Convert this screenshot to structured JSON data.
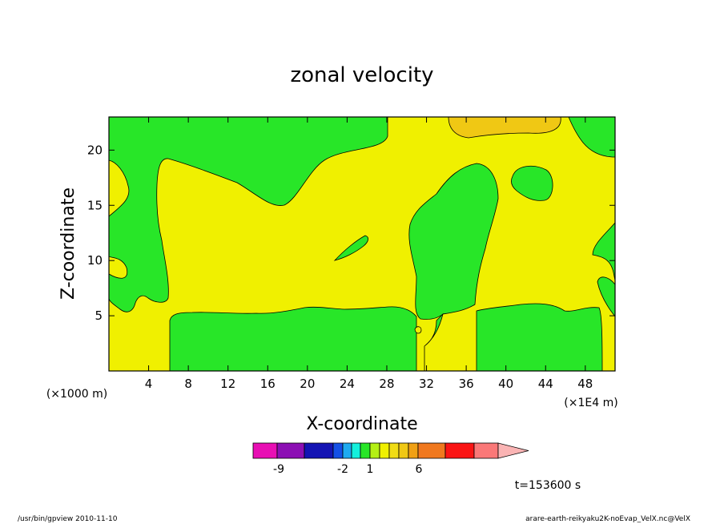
{
  "footer": {
    "left": "/usr/bin/gpview   2010-11-10",
    "right": "arare-earth-reikyaku2K-noEvap_VelX.nc@VelX"
  },
  "chart_data": {
    "type": "heatmap",
    "title": "zonal velocity",
    "xlabel": "X-coordinate",
    "ylabel": "Z-coordinate",
    "x_unit_left": "(×1000 m)",
    "x_unit_right": "(×1E4 m)",
    "xlim": [
      0,
      51
    ],
    "ylim": [
      0,
      23
    ],
    "xticks": [
      4,
      8,
      12,
      16,
      20,
      24,
      28,
      32,
      36,
      40,
      44,
      48
    ],
    "yticks": [
      5,
      10,
      15,
      20
    ],
    "time_label": "t=153600 s",
    "colorbar": {
      "colors": [
        "#e80fb4",
        "#8c0fb4",
        "#1414b4",
        "#1450e6",
        "#1eaaf0",
        "#14f0dc",
        "#28e628",
        "#b4f014",
        "#f0f000",
        "#f0dc14",
        "#f0c814",
        "#f0a014",
        "#f0781e",
        "#fa1414",
        "#fa7878",
        "#fab4b4"
      ],
      "visible_labels": [
        "-9",
        "-2",
        "1",
        "6"
      ]
    },
    "fields": {
      "background_color": "#f0f000",
      "green_color": "#28e628",
      "orange_color": "#f0c814"
    }
  }
}
